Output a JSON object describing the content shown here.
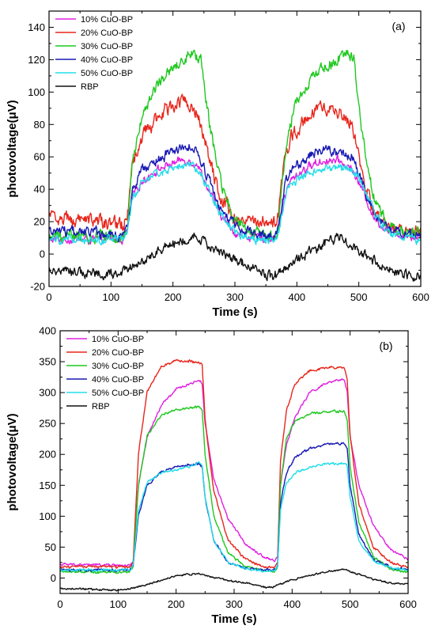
{
  "chart_data": [
    {
      "type": "line",
      "panel_label": "(a)",
      "xlabel": "Time (s)",
      "ylabel": "photovoltage(μV)",
      "xlim": [
        0,
        600
      ],
      "ylim": [
        -20,
        150
      ],
      "xticks": [
        0,
        100,
        200,
        300,
        400,
        500,
        600
      ],
      "yticks": [
        -20,
        0,
        20,
        40,
        60,
        80,
        100,
        120,
        140
      ],
      "legend_position": "top-left",
      "grid": false,
      "series": [
        {
          "name": "10% CuO-BP",
          "color": "#e020e0",
          "noise": 2.0,
          "jitter": 0.5,
          "x": [
            0,
            120,
            126,
            135,
            150,
            175,
            200,
            215,
            225,
            240,
            255,
            275,
            300,
            320,
            345,
            365,
            370,
            380,
            390,
            410,
            430,
            450,
            470,
            490,
            505,
            525,
            545,
            570,
            600
          ],
          "y": [
            9,
            9,
            14,
            36,
            45,
            52,
            56,
            58,
            58,
            55,
            42,
            25,
            13,
            11,
            10,
            10,
            14,
            36,
            45,
            52,
            56,
            58,
            57,
            52,
            40,
            22,
            15,
            12,
            11
          ]
        },
        {
          "name": "20% CuO-BP",
          "color": "#e8261c",
          "noise": 3.5,
          "jitter": 0.5,
          "x": [
            0,
            20,
            60,
            100,
            120,
            126,
            135,
            150,
            175,
            200,
            215,
            225,
            240,
            255,
            275,
            300,
            320,
            345,
            365,
            370,
            380,
            390,
            410,
            430,
            450,
            470,
            490,
            505,
            525,
            545,
            570,
            600
          ],
          "y": [
            23,
            22,
            21,
            19,
            19,
            22,
            55,
            72,
            85,
            92,
            95,
            94,
            88,
            65,
            35,
            22,
            19,
            19,
            19,
            24,
            55,
            72,
            82,
            89,
            90,
            87,
            80,
            50,
            25,
            17,
            15,
            15
          ]
        },
        {
          "name": "30% CuO-BP",
          "color": "#1fc81f",
          "noise": 3.0,
          "jitter": 0.5,
          "x": [
            0,
            120,
            126,
            135,
            150,
            175,
            200,
            215,
            230,
            245,
            260,
            280,
            300,
            320,
            345,
            365,
            370,
            380,
            395,
            415,
            440,
            465,
            480,
            492,
            505,
            525,
            545,
            570,
            600
          ],
          "y": [
            11,
            11,
            16,
            58,
            85,
            105,
            115,
            119,
            122,
            120,
            78,
            40,
            22,
            14,
            12,
            12,
            18,
            60,
            90,
            105,
            115,
            120,
            124,
            122,
            75,
            35,
            18,
            13,
            12
          ]
        },
        {
          "name": "40% CuO-BP",
          "color": "#1a1ab4",
          "noise": 2.5,
          "jitter": 0.5,
          "x": [
            0,
            20,
            60,
            100,
            120,
            126,
            135,
            150,
            175,
            200,
            215,
            225,
            240,
            255,
            275,
            300,
            320,
            345,
            365,
            370,
            380,
            390,
            410,
            430,
            450,
            470,
            490,
            505,
            525,
            545,
            570,
            600
          ],
          "y": [
            15,
            14,
            13,
            12,
            12,
            16,
            40,
            52,
            58,
            63,
            66,
            67,
            64,
            48,
            28,
            17,
            13,
            12,
            12,
            16,
            42,
            52,
            58,
            63,
            64,
            62,
            60,
            45,
            24,
            16,
            13,
            12
          ]
        },
        {
          "name": "50% CuO-BP",
          "color": "#22dde8",
          "noise": 2.0,
          "jitter": 0.5,
          "x": [
            0,
            120,
            126,
            135,
            150,
            175,
            200,
            215,
            225,
            240,
            255,
            275,
            300,
            320,
            345,
            365,
            370,
            380,
            390,
            410,
            430,
            450,
            470,
            490,
            505,
            525,
            545,
            570,
            600
          ],
          "y": [
            9,
            9,
            13,
            34,
            44,
            50,
            53,
            55,
            55,
            52,
            42,
            26,
            14,
            10,
            9,
            9,
            13,
            34,
            44,
            48,
            51,
            53,
            53,
            52,
            45,
            25,
            14,
            10,
            9
          ]
        },
        {
          "name": "RBP",
          "color": "#111111",
          "noise": 2.5,
          "jitter": 0.5,
          "x": [
            0,
            50,
            100,
            120,
            150,
            175,
            200,
            220,
            235,
            250,
            280,
            300,
            330,
            360,
            370,
            400,
            425,
            450,
            470,
            490,
            510,
            540,
            570,
            590,
            600
          ],
          "y": [
            -9,
            -11,
            -13,
            -10,
            -5,
            2,
            7,
            8,
            12,
            7,
            1,
            -4,
            -9,
            -14,
            -12,
            -4,
            2,
            7,
            10,
            6,
            -1,
            -8,
            -12,
            -14,
            -13
          ]
        }
      ]
    },
    {
      "type": "line",
      "panel_label": "(b)",
      "xlabel": "Time (s)",
      "ylabel": "photovoltage(μV)",
      "xlim": [
        0,
        600
      ],
      "ylim": [
        -25,
        400
      ],
      "xticks": [
        0,
        100,
        200,
        300,
        400,
        500,
        600
      ],
      "yticks": [
        0,
        50,
        100,
        150,
        200,
        250,
        300,
        350,
        400
      ],
      "legend_position": "top-left",
      "grid": false,
      "series": [
        {
          "name": "10% CuO-BP",
          "color": "#e020e0",
          "noise": 1.5,
          "jitter": 0.5,
          "x": [
            0,
            100,
            120,
            126,
            135,
            150,
            175,
            200,
            225,
            240,
            245,
            250,
            265,
            290,
            320,
            350,
            370,
            375,
            380,
            390,
            405,
            430,
            460,
            490,
            495,
            500,
            515,
            540,
            570,
            600
          ],
          "y": [
            22,
            21,
            20,
            25,
            150,
            228,
            280,
            305,
            315,
            320,
            315,
            250,
            160,
            95,
            55,
            35,
            28,
            35,
            150,
            215,
            260,
            300,
            315,
            322,
            300,
            230,
            150,
            85,
            45,
            30
          ]
        },
        {
          "name": "20% CuO-BP",
          "color": "#e8261c",
          "noise": 1.5,
          "jitter": 0.5,
          "x": [
            0,
            100,
            120,
            126,
            135,
            150,
            175,
            200,
            225,
            240,
            245,
            250,
            265,
            290,
            320,
            350,
            370,
            375,
            380,
            390,
            405,
            430,
            460,
            490,
            495,
            500,
            515,
            540,
            570,
            600
          ],
          "y": [
            18,
            18,
            17,
            25,
            200,
            300,
            343,
            352,
            351,
            348,
            345,
            255,
            140,
            60,
            30,
            18,
            17,
            25,
            190,
            270,
            315,
            335,
            340,
            340,
            320,
            230,
            120,
            50,
            25,
            18
          ]
        },
        {
          "name": "30% CuO-BP",
          "color": "#1fc81f",
          "noise": 1.5,
          "jitter": 0.5,
          "x": [
            0,
            100,
            120,
            126,
            135,
            150,
            175,
            200,
            225,
            240,
            245,
            250,
            265,
            290,
            320,
            350,
            370,
            375,
            380,
            390,
            405,
            430,
            460,
            490,
            495,
            500,
            515,
            540,
            570,
            600
          ],
          "y": [
            10,
            10,
            10,
            18,
            150,
            230,
            265,
            272,
            276,
            277,
            272,
            200,
            100,
            40,
            18,
            12,
            11,
            18,
            150,
            225,
            255,
            265,
            270,
            270,
            255,
            180,
            90,
            35,
            15,
            10
          ]
        },
        {
          "name": "40% CuO-BP",
          "color": "#1a1ab4",
          "noise": 1.5,
          "jitter": 0.5,
          "x": [
            0,
            100,
            120,
            126,
            135,
            150,
            175,
            200,
            225,
            240,
            245,
            250,
            265,
            290,
            320,
            350,
            370,
            375,
            380,
            390,
            405,
            430,
            460,
            490,
            495,
            500,
            515,
            540,
            570,
            600
          ],
          "y": [
            13,
            13,
            13,
            20,
            100,
            150,
            172,
            180,
            184,
            185,
            180,
            130,
            60,
            25,
            15,
            13,
            13,
            20,
            120,
            170,
            195,
            210,
            216,
            218,
            210,
            150,
            70,
            30,
            17,
            14
          ]
        },
        {
          "name": "50% CuO-BP",
          "color": "#22dde8",
          "noise": 1.5,
          "jitter": 0.5,
          "x": [
            0,
            100,
            120,
            126,
            135,
            150,
            175,
            200,
            225,
            240,
            245,
            250,
            265,
            290,
            320,
            350,
            370,
            375,
            380,
            390,
            405,
            430,
            460,
            490,
            495,
            500,
            515,
            540,
            570,
            600
          ],
          "y": [
            13,
            13,
            13,
            20,
            110,
            155,
            170,
            175,
            180,
            188,
            182,
            130,
            60,
            25,
            15,
            12,
            12,
            20,
            110,
            155,
            170,
            180,
            185,
            186,
            180,
            130,
            60,
            28,
            16,
            14
          ]
        },
        {
          "name": "RBP",
          "color": "#111111",
          "noise": 1.0,
          "jitter": 0.5,
          "x": [
            0,
            50,
            100,
            120,
            150,
            180,
            200,
            220,
            240,
            260,
            290,
            320,
            350,
            365,
            380,
            400,
            430,
            460,
            480,
            490,
            510,
            540,
            570,
            600
          ],
          "y": [
            -17,
            -18,
            -20,
            -18,
            -10,
            -2,
            3,
            6,
            7,
            2,
            -4,
            -8,
            -14,
            -16,
            -10,
            -3,
            4,
            10,
            13,
            14,
            8,
            -2,
            -8,
            -10
          ]
        }
      ]
    }
  ]
}
